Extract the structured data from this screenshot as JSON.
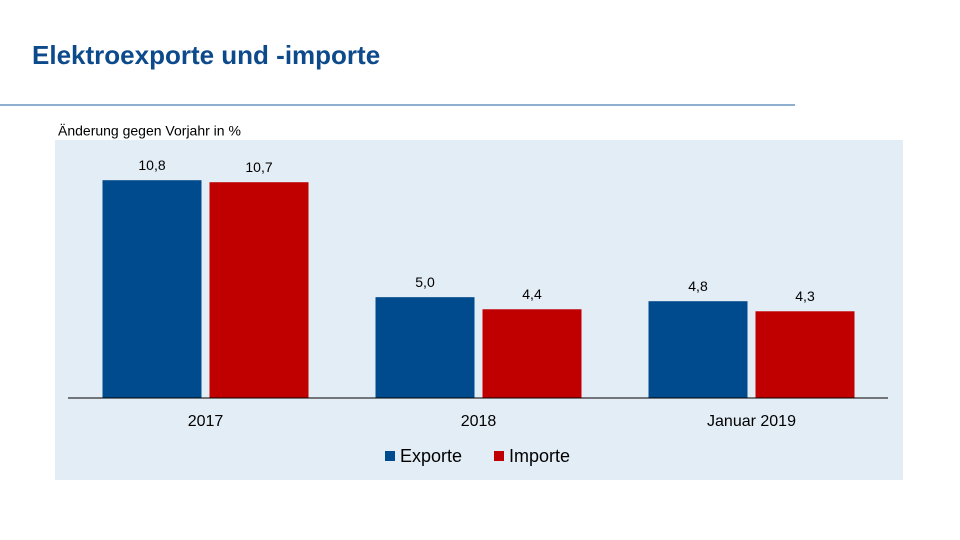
{
  "chart_data": {
    "type": "bar",
    "title": "Elektroexporte und -importe",
    "subtitle": "Änderung gegen Vorjahr in %",
    "categories": [
      "2017",
      "2018",
      "Januar 2019"
    ],
    "series": [
      {
        "name": "Exporte",
        "color": "#004b8d",
        "values": [
          10.8,
          5.0,
          4.8
        ],
        "value_labels": [
          "10,8",
          "5,0",
          "4,8"
        ]
      },
      {
        "name": "Importe",
        "color": "#c00000",
        "values": [
          10.7,
          4.4,
          4.3
        ],
        "value_labels": [
          "10,7",
          "4,4",
          "4,3"
        ]
      }
    ],
    "ylim": [
      0,
      12
    ],
    "legend": "bottom"
  }
}
